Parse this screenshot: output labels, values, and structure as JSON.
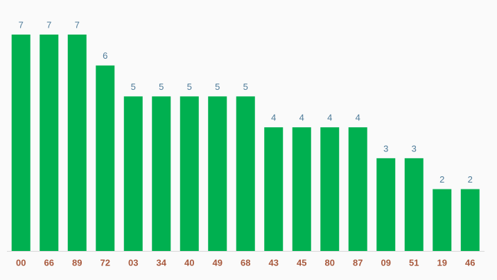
{
  "chart_data": {
    "type": "bar",
    "categories": [
      "00",
      "66",
      "89",
      "72",
      "03",
      "34",
      "40",
      "49",
      "68",
      "43",
      "45",
      "80",
      "87",
      "09",
      "51",
      "19",
      "46"
    ],
    "values": [
      7,
      7,
      7,
      6,
      5,
      5,
      5,
      5,
      5,
      4,
      4,
      4,
      4,
      3,
      3,
      2,
      2
    ],
    "color": "#00b050"
  }
}
